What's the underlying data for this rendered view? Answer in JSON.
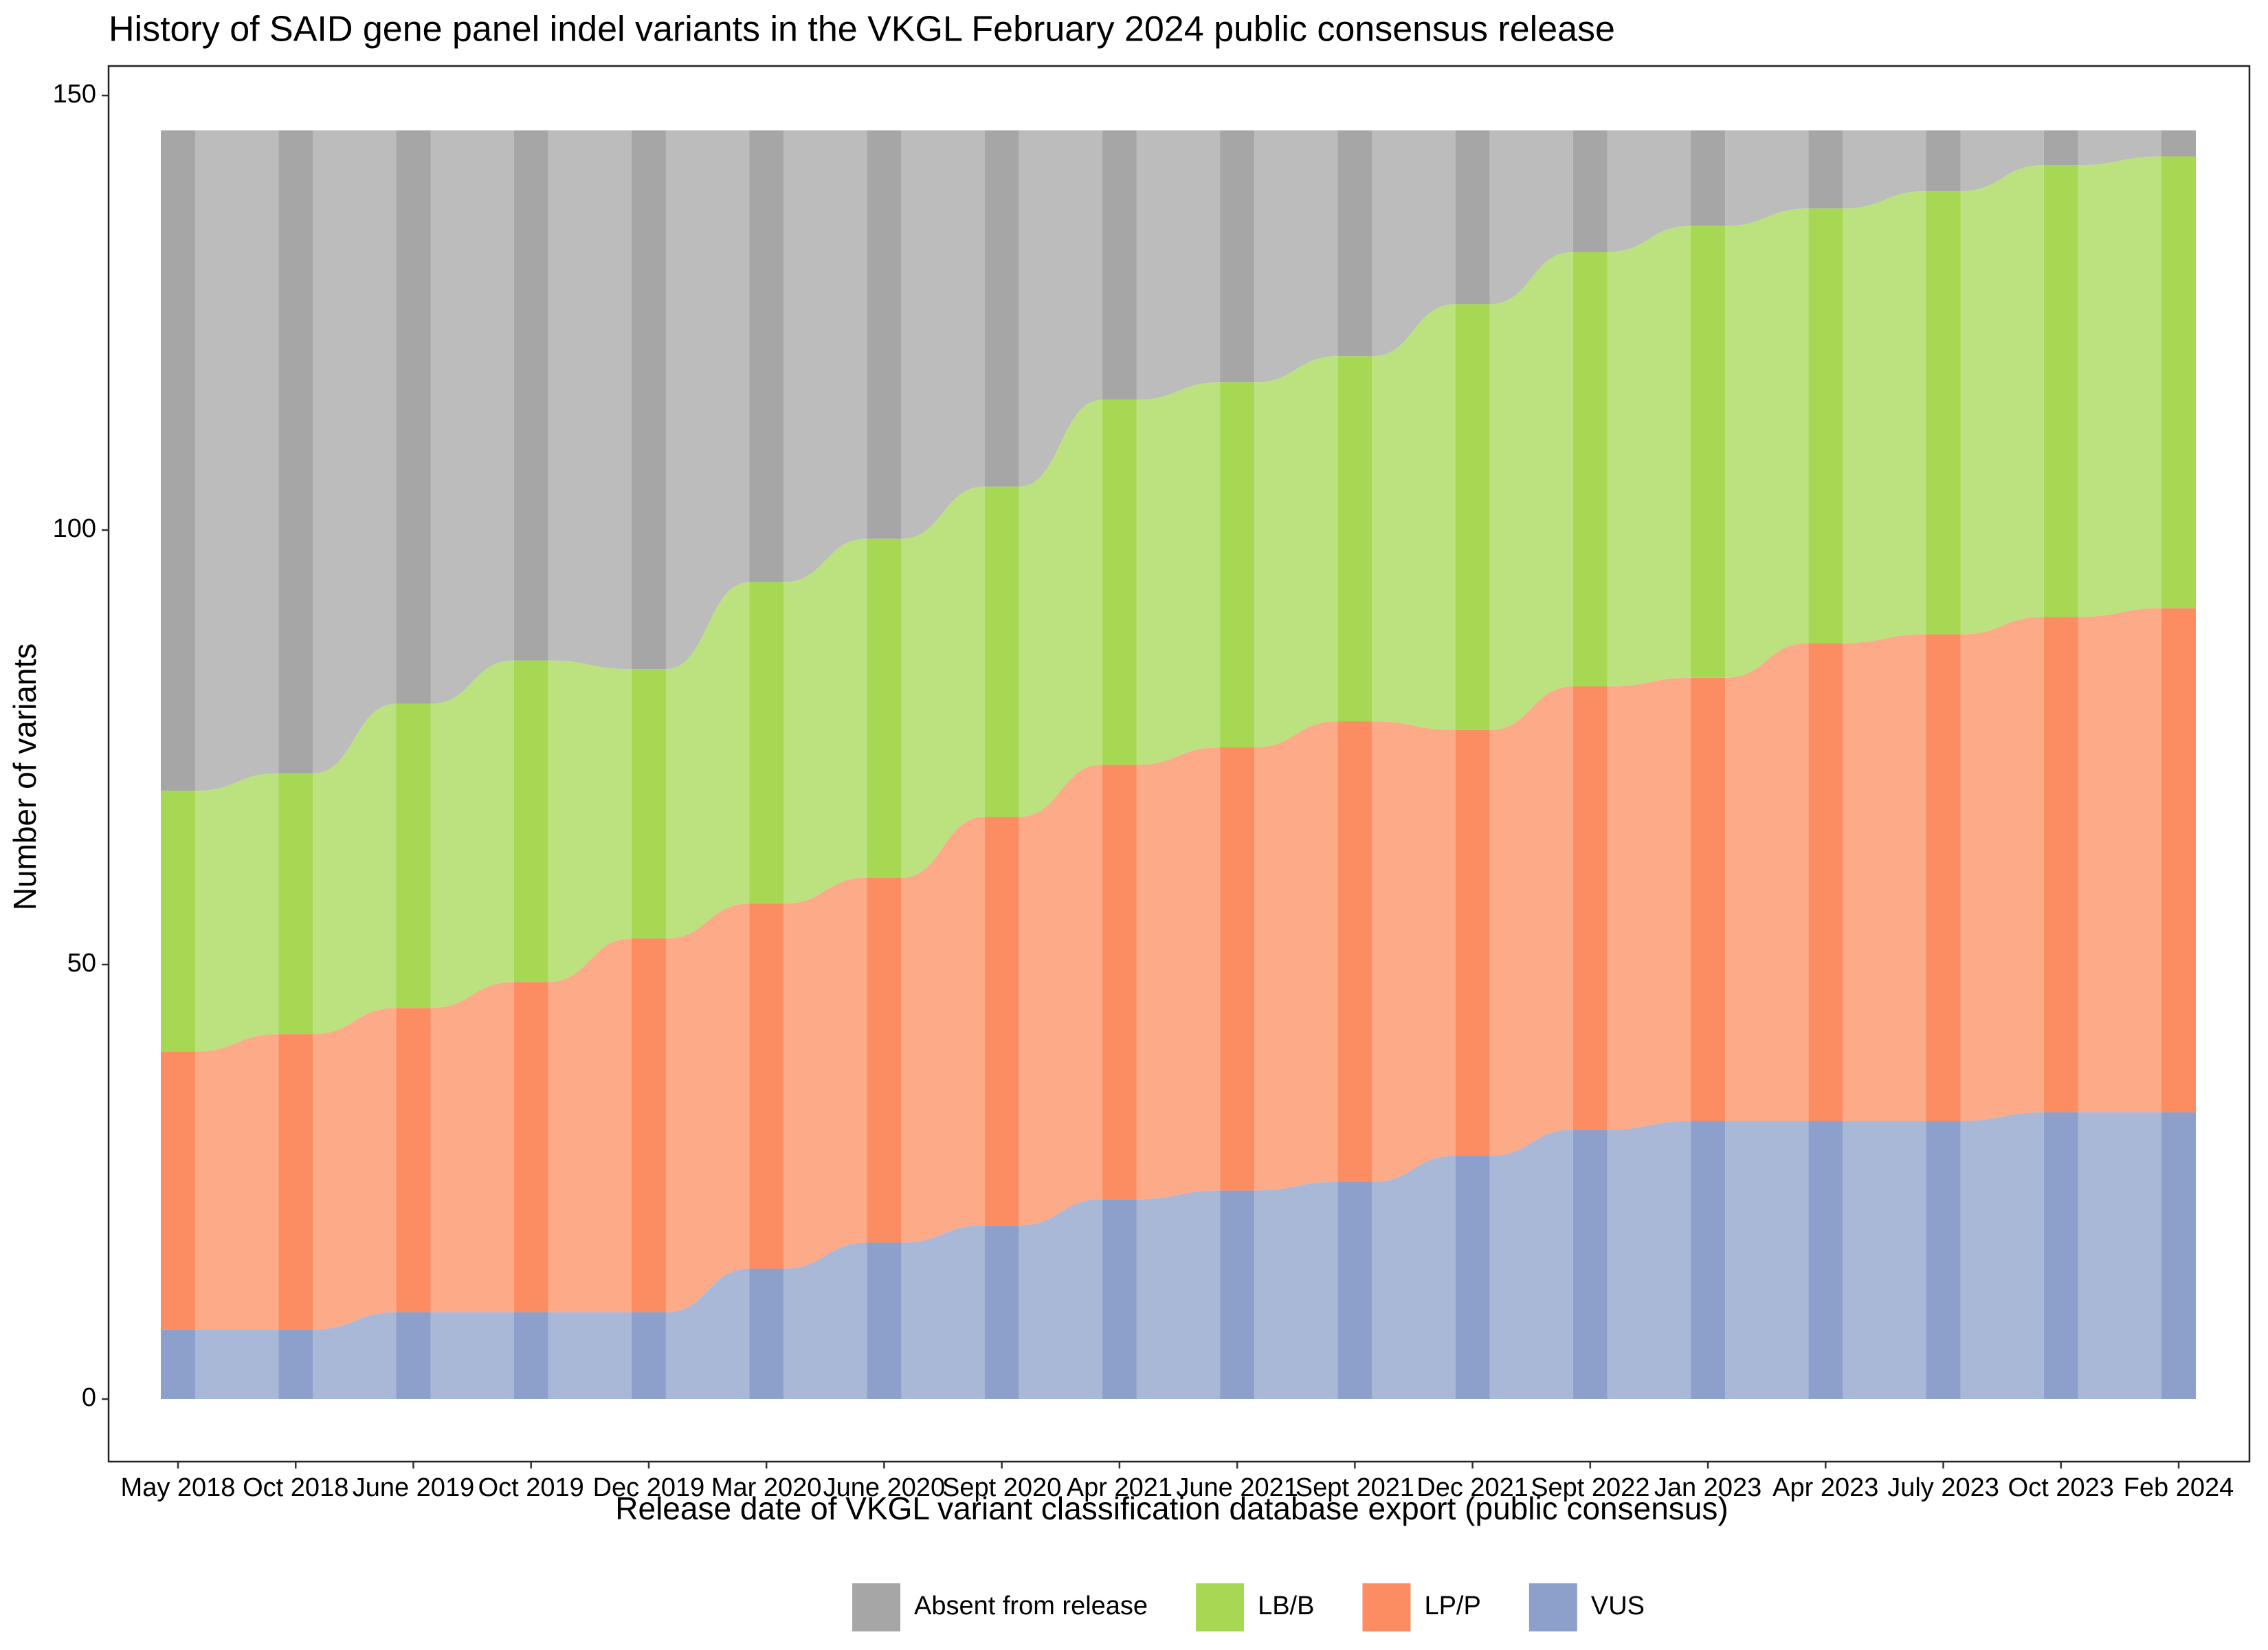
{
  "chart_data": {
    "type": "alluvial",
    "title": "History of SAID gene panel indel variants in the VKGL February 2024 public consensus release",
    "x_label": "Release date of VKGL variant classification database export (public consensus)",
    "y_label": "Number of variants",
    "categories": [
      "May 2018",
      "Oct 2018",
      "June 2019",
      "Oct 2019",
      "Dec 2019",
      "Mar 2020",
      "June 2020",
      "Sept 2020",
      "Apr 2021",
      "June 2021",
      "Sept 2021",
      "Dec 2021",
      "Sept 2022",
      "Jan 2023",
      "Apr 2023",
      "July 2023",
      "Oct 2023",
      "Feb 2024"
    ],
    "series": [
      {
        "name": "Absent from release",
        "color": "#a6a6a6",
        "values": [
          76,
          74,
          66,
          61,
          62,
          52,
          47,
          41,
          31,
          29,
          26,
          20,
          14,
          11,
          9,
          7,
          4,
          3
        ]
      },
      {
        "name": "LB/B",
        "color": "#a6d854",
        "values": [
          30,
          30,
          35,
          37,
          31,
          37,
          39,
          38,
          42,
          42,
          42,
          49,
          50,
          52,
          50,
          51,
          52,
          52
        ]
      },
      {
        "name": "LP/P",
        "color": "#fc8d62",
        "values": [
          32,
          34,
          35,
          38,
          43,
          42,
          42,
          47,
          50,
          51,
          53,
          49,
          51,
          51,
          55,
          56,
          57,
          58
        ]
      },
      {
        "name": "VUS",
        "color": "#8da0cb",
        "values": [
          8,
          8,
          10,
          10,
          10,
          15,
          18,
          20,
          23,
          24,
          25,
          28,
          31,
          32,
          32,
          32,
          33,
          33
        ]
      }
    ],
    "ylim": [
      -7.2,
      153.4
    ],
    "yticks": [
      0,
      50,
      100,
      150
    ],
    "legend": "bottom"
  }
}
